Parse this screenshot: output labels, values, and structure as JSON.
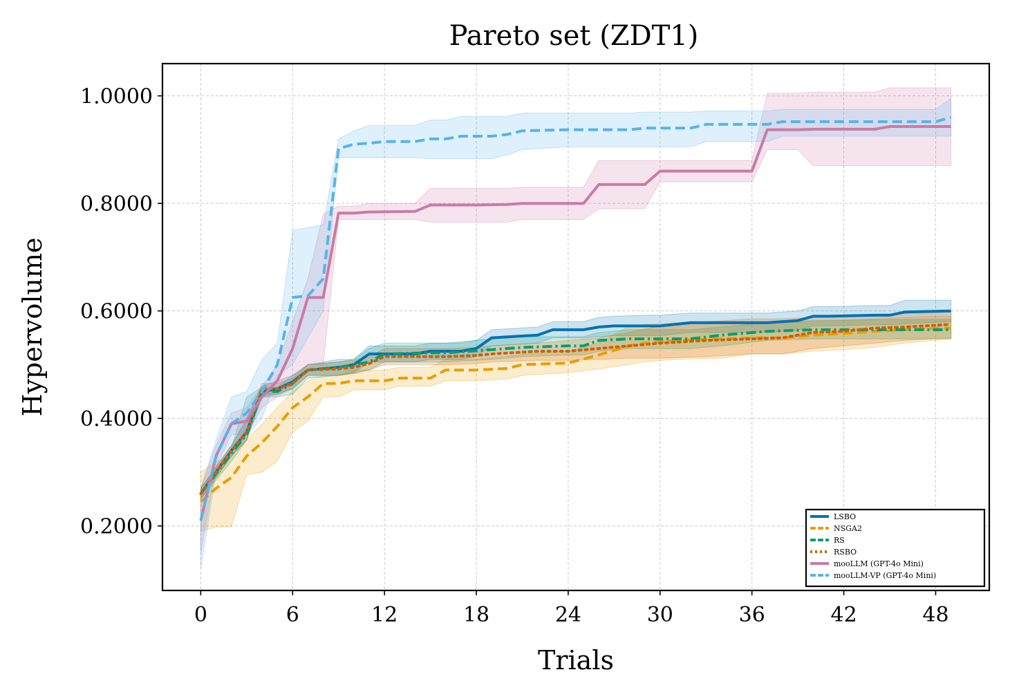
{
  "chart_data": {
    "type": "line",
    "title": "Pareto set (ZDT1)",
    "xlabel": "Trials",
    "ylabel": "Hypervolume",
    "xlim": [
      -2.5,
      51.5
    ],
    "ylim": [
      0.08,
      1.06
    ],
    "xticks": [
      0,
      6,
      12,
      18,
      24,
      30,
      36,
      42,
      48
    ],
    "yticks": [
      0.2,
      0.4,
      0.6,
      0.8,
      1.0
    ],
    "ytick_labels": [
      "0.2000",
      "0.4000",
      "0.6000",
      "0.8000",
      "1.0000"
    ],
    "grid": true,
    "legend_position": "lower-right",
    "series": [
      {
        "name": "LSBO",
        "color": "#0072B2",
        "dash": "solid",
        "x": [
          0,
          2,
          3,
          4,
          5,
          6,
          7,
          9,
          10,
          11,
          12,
          14,
          15,
          17,
          18,
          19,
          22,
          23,
          25,
          26,
          27,
          29,
          30,
          32,
          37,
          39,
          40,
          41,
          44,
          45,
          46,
          49
        ],
        "y": [
          0.26,
          0.34,
          0.375,
          0.45,
          0.455,
          0.468,
          0.49,
          0.495,
          0.5,
          0.52,
          0.52,
          0.52,
          0.525,
          0.525,
          0.53,
          0.55,
          0.555,
          0.565,
          0.565,
          0.57,
          0.572,
          0.572,
          0.572,
          0.578,
          0.578,
          0.582,
          0.59,
          0.59,
          0.592,
          0.592,
          0.598,
          0.6
        ],
        "upper": [
          0.27,
          0.35,
          0.4,
          0.46,
          0.47,
          0.48,
          0.5,
          0.51,
          0.51,
          0.535,
          0.535,
          0.535,
          0.54,
          0.54,
          0.545,
          0.565,
          0.57,
          0.58,
          0.58,
          0.588,
          0.59,
          0.592,
          0.592,
          0.596,
          0.596,
          0.6,
          0.608,
          0.608,
          0.61,
          0.61,
          0.62,
          0.62
        ],
        "lower": [
          0.25,
          0.33,
          0.36,
          0.44,
          0.445,
          0.455,
          0.48,
          0.48,
          0.485,
          0.505,
          0.505,
          0.505,
          0.51,
          0.51,
          0.515,
          0.535,
          0.54,
          0.55,
          0.55,
          0.552,
          0.554,
          0.554,
          0.554,
          0.56,
          0.56,
          0.564,
          0.572,
          0.572,
          0.574,
          0.574,
          0.576,
          0.58
        ]
      },
      {
        "name": "NSGA2",
        "color": "#E69F00",
        "dash": "dashed",
        "x": [
          0,
          1,
          2,
          3,
          4,
          5,
          6,
          7,
          8,
          9,
          10,
          12,
          13,
          15,
          16,
          18,
          20,
          21,
          24,
          26,
          28,
          29,
          31,
          34,
          36,
          38,
          40,
          42,
          44,
          46,
          48,
          49
        ],
        "y": [
          0.245,
          0.27,
          0.29,
          0.33,
          0.355,
          0.385,
          0.42,
          0.44,
          0.465,
          0.465,
          0.47,
          0.47,
          0.475,
          0.475,
          0.49,
          0.49,
          0.493,
          0.5,
          0.503,
          0.518,
          0.535,
          0.54,
          0.545,
          0.548,
          0.55,
          0.55,
          0.555,
          0.558,
          0.562,
          0.565,
          0.568,
          0.568
        ],
        "upper": [
          0.3,
          0.32,
          0.33,
          0.36,
          0.39,
          0.42,
          0.45,
          0.47,
          0.48,
          0.48,
          0.49,
          0.49,
          0.495,
          0.495,
          0.51,
          0.51,
          0.515,
          0.52,
          0.525,
          0.54,
          0.572,
          0.575,
          0.578,
          0.578,
          0.578,
          0.578,
          0.58,
          0.582,
          0.585,
          0.588,
          0.59,
          0.59
        ],
        "lower": [
          0.19,
          0.198,
          0.198,
          0.295,
          0.3,
          0.32,
          0.375,
          0.395,
          0.44,
          0.44,
          0.453,
          0.453,
          0.46,
          0.46,
          0.47,
          0.47,
          0.473,
          0.48,
          0.485,
          0.492,
          0.5,
          0.505,
          0.51,
          0.512,
          0.52,
          0.52,
          0.525,
          0.528,
          0.532,
          0.54,
          0.545,
          0.548
        ]
      },
      {
        "name": "RS",
        "color": "#009E73",
        "dash": "dashdot",
        "x": [
          0,
          2,
          3,
          4,
          5,
          6,
          7,
          9,
          10,
          11,
          12,
          15,
          16,
          19,
          21,
          24,
          25,
          26,
          28,
          30,
          31,
          32,
          34,
          37,
          40,
          44,
          49
        ],
        "y": [
          0.26,
          0.335,
          0.37,
          0.45,
          0.45,
          0.465,
          0.49,
          0.495,
          0.5,
          0.505,
          0.52,
          0.522,
          0.522,
          0.528,
          0.532,
          0.535,
          0.535,
          0.545,
          0.548,
          0.548,
          0.548,
          0.548,
          0.555,
          0.562,
          0.565,
          0.565,
          0.565
        ],
        "upper": [
          0.27,
          0.345,
          0.44,
          0.458,
          0.458,
          0.48,
          0.5,
          0.505,
          0.51,
          0.53,
          0.54,
          0.54,
          0.54,
          0.548,
          0.552,
          0.552,
          0.552,
          0.56,
          0.565,
          0.565,
          0.565,
          0.565,
          0.57,
          0.578,
          0.582,
          0.584,
          0.584
        ],
        "lower": [
          0.25,
          0.32,
          0.36,
          0.44,
          0.44,
          0.445,
          0.475,
          0.48,
          0.485,
          0.49,
          0.505,
          0.505,
          0.505,
          0.51,
          0.515,
          0.518,
          0.518,
          0.525,
          0.53,
          0.53,
          0.53,
          0.53,
          0.535,
          0.545,
          0.548,
          0.548,
          0.548
        ]
      },
      {
        "name": "RSBO",
        "color": "#D55E00",
        "dash": "dotted",
        "x": [
          0,
          2,
          3,
          4,
          5,
          6,
          7,
          9,
          10,
          11,
          12,
          14,
          16,
          18,
          19,
          22,
          24,
          26,
          28,
          30,
          33,
          36,
          38,
          40,
          42,
          44,
          46,
          49
        ],
        "y": [
          0.26,
          0.34,
          0.375,
          0.455,
          0.455,
          0.465,
          0.49,
          0.492,
          0.495,
          0.502,
          0.515,
          0.515,
          0.515,
          0.517,
          0.52,
          0.525,
          0.525,
          0.53,
          0.535,
          0.54,
          0.545,
          0.548,
          0.55,
          0.56,
          0.562,
          0.568,
          0.57,
          0.575
        ],
        "upper": [
          0.27,
          0.35,
          0.395,
          0.465,
          0.465,
          0.475,
          0.5,
          0.505,
          0.508,
          0.515,
          0.53,
          0.53,
          0.53,
          0.532,
          0.535,
          0.54,
          0.545,
          0.55,
          0.56,
          0.572,
          0.58,
          0.585,
          0.585,
          0.588,
          0.59,
          0.594,
          0.595,
          0.598
        ],
        "lower": [
          0.25,
          0.33,
          0.36,
          0.445,
          0.445,
          0.455,
          0.48,
          0.48,
          0.483,
          0.49,
          0.5,
          0.5,
          0.5,
          0.502,
          0.505,
          0.508,
          0.508,
          0.51,
          0.512,
          0.512,
          0.515,
          0.52,
          0.52,
          0.53,
          0.535,
          0.54,
          0.545,
          0.55
        ]
      },
      {
        "name": "mooLLM (GPT-4o Mini)",
        "color": "#CC79A7",
        "dash": "solid",
        "x": [
          0,
          1,
          2,
          3,
          4,
          5,
          6,
          7,
          8,
          9,
          10,
          11,
          14,
          15,
          18,
          20,
          21,
          25,
          26,
          29,
          30,
          36,
          37,
          39,
          40,
          44,
          45,
          49
        ],
        "y": [
          0.21,
          0.33,
          0.39,
          0.395,
          0.44,
          0.47,
          0.53,
          0.625,
          0.625,
          0.782,
          0.782,
          0.784,
          0.785,
          0.797,
          0.797,
          0.798,
          0.8,
          0.8,
          0.835,
          0.835,
          0.86,
          0.86,
          0.937,
          0.937,
          0.938,
          0.938,
          0.943,
          0.943
        ],
        "upper": [
          0.27,
          0.35,
          0.41,
          0.42,
          0.46,
          0.5,
          0.58,
          0.66,
          0.78,
          0.795,
          0.795,
          0.8,
          0.8,
          0.828,
          0.828,
          0.828,
          0.83,
          0.83,
          0.88,
          0.88,
          0.88,
          0.88,
          1.005,
          1.005,
          1.007,
          1.007,
          1.015,
          1.015
        ],
        "lower": [
          0.15,
          0.31,
          0.37,
          0.37,
          0.42,
          0.44,
          0.46,
          0.5,
          0.5,
          0.77,
          0.77,
          0.77,
          0.77,
          0.765,
          0.765,
          0.765,
          0.77,
          0.77,
          0.79,
          0.79,
          0.84,
          0.84,
          0.9,
          0.9,
          0.87,
          0.87,
          0.87,
          0.87
        ]
      },
      {
        "name": "mooLLM-VP (GPT-4o Mini)",
        "color": "#56B4E9",
        "dash": "dashed",
        "x": [
          0,
          1,
          2,
          3,
          4,
          5,
          6,
          7,
          8,
          9,
          10,
          11,
          12,
          14,
          15,
          16,
          17,
          19,
          20,
          21,
          24,
          28,
          29,
          32,
          33,
          37,
          38,
          48,
          49
        ],
        "y": [
          0.21,
          0.33,
          0.39,
          0.41,
          0.45,
          0.5,
          0.625,
          0.628,
          0.66,
          0.902,
          0.91,
          0.912,
          0.915,
          0.915,
          0.92,
          0.92,
          0.925,
          0.925,
          0.928,
          0.935,
          0.937,
          0.937,
          0.94,
          0.94,
          0.947,
          0.947,
          0.952,
          0.952,
          0.96
        ],
        "upper": [
          0.27,
          0.36,
          0.44,
          0.45,
          0.51,
          0.54,
          0.75,
          0.755,
          0.76,
          0.92,
          0.935,
          0.945,
          0.945,
          0.945,
          0.955,
          0.955,
          0.962,
          0.962,
          0.962,
          0.968,
          0.968,
          0.968,
          0.97,
          0.97,
          0.972,
          0.972,
          0.975,
          0.975,
          0.995
        ],
        "lower": [
          0.12,
          0.3,
          0.33,
          0.37,
          0.4,
          0.48,
          0.5,
          0.55,
          0.6,
          0.885,
          0.885,
          0.885,
          0.885,
          0.885,
          0.883,
          0.883,
          0.883,
          0.883,
          0.89,
          0.9,
          0.905,
          0.905,
          0.905,
          0.905,
          0.915,
          0.915,
          0.925,
          0.925,
          0.925
        ]
      }
    ]
  }
}
